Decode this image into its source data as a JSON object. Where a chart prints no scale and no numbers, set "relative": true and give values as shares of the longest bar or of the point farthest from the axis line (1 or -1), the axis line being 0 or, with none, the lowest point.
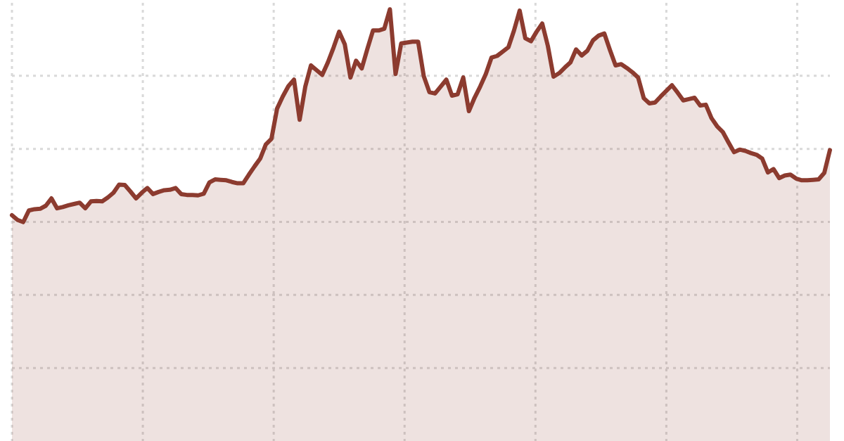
{
  "chart_data": {
    "type": "area",
    "relative": true,
    "grid": true,
    "color": "#8c3b2f",
    "categories": [
      null,
      null,
      null,
      null,
      null,
      null,
      null,
      null,
      null,
      null,
      null,
      null,
      null,
      null,
      null,
      null,
      null,
      null,
      null,
      null,
      null,
      null,
      null,
      null,
      null,
      null,
      null,
      null,
      null,
      null,
      null,
      null,
      null,
      null,
      null,
      null,
      null,
      null,
      null,
      null,
      null,
      null,
      null,
      null,
      null,
      null,
      null,
      null,
      null,
      null,
      null,
      null,
      null,
      null,
      null,
      null,
      null,
      null,
      null,
      null,
      null,
      null,
      null,
      null,
      null,
      null,
      null,
      null,
      null,
      null,
      null,
      null,
      null,
      null,
      null,
      null,
      null,
      null,
      null,
      null,
      null,
      null,
      null,
      null,
      null,
      null,
      null,
      null,
      null,
      null,
      null,
      null,
      null,
      null,
      null,
      null,
      null,
      null,
      null,
      null,
      null,
      null,
      null,
      null,
      null,
      null,
      null,
      null,
      null,
      null,
      null,
      null,
      null,
      null,
      null,
      null,
      null,
      null,
      null,
      null,
      null,
      null,
      null,
      null,
      null,
      null,
      null,
      null,
      null,
      null,
      null,
      null,
      null,
      null,
      null,
      null,
      null,
      null,
      null,
      null,
      null,
      null,
      null,
      null,
      null,
      null
    ],
    "values": [
      0.523,
      0.512,
      0.507,
      0.534,
      0.537,
      0.538,
      0.545,
      0.562,
      0.539,
      0.542,
      0.546,
      0.549,
      0.552,
      0.539,
      0.555,
      0.556,
      0.555,
      0.564,
      0.575,
      0.594,
      0.593,
      0.578,
      0.562,
      0.575,
      0.586,
      0.572,
      0.577,
      0.581,
      0.582,
      0.586,
      0.572,
      0.57,
      0.57,
      0.569,
      0.573,
      0.599,
      0.606,
      0.605,
      0.604,
      0.6,
      0.597,
      0.597,
      0.617,
      0.636,
      0.654,
      0.687,
      0.7,
      0.77,
      0.798,
      0.822,
      0.837,
      0.744,
      0.821,
      0.87,
      0.859,
      0.848,
      0.877,
      0.911,
      0.948,
      0.919,
      0.842,
      0.881,
      0.863,
      0.908,
      0.951,
      0.951,
      0.955,
      1,
      0.85,
      0.921,
      0.923,
      0.925,
      0.925,
      0.845,
      0.808,
      0.805,
      0.821,
      0.837,
      0.8,
      0.803,
      0.842,
      0.764,
      0.795,
      0.821,
      0.85,
      0.888,
      0.892,
      0.902,
      0.912,
      0.951,
      0.997,
      0.933,
      0.926,
      0.948,
      0.967,
      0.915,
      0.844,
      0.852,
      0.865,
      0.877,
      0.907,
      0.893,
      0.904,
      0.928,
      0.939,
      0.944,
      0.906,
      0.87,
      0.873,
      0.864,
      0.854,
      0.842,
      0.794,
      0.782,
      0.784,
      0.798,
      0.811,
      0.824,
      0.807,
      0.789,
      0.792,
      0.795,
      0.777,
      0.779,
      0.748,
      0.729,
      0.716,
      0.692,
      0.669,
      0.675,
      0.672,
      0.667,
      0.663,
      0.654,
      0.622,
      0.63,
      0.609,
      0.615,
      0.617,
      0.608,
      0.604,
      0.604,
      0.605,
      0.606,
      0.621,
      0.674
    ]
  }
}
